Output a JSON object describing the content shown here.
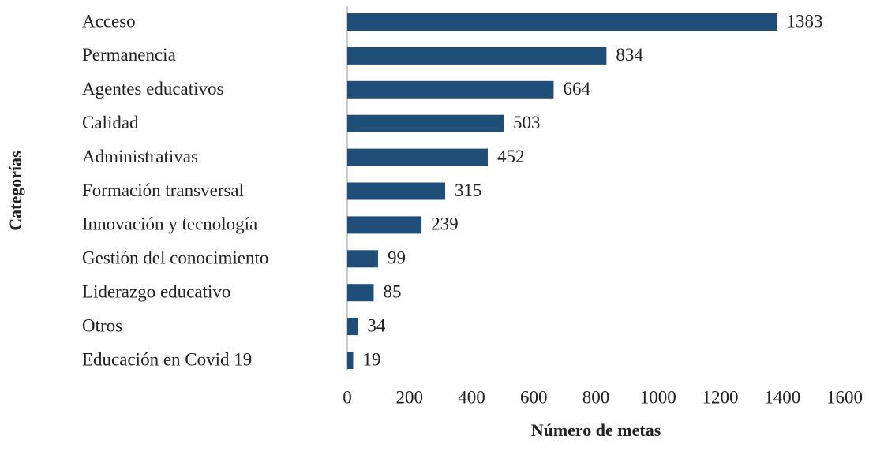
{
  "chart_data": {
    "type": "bar",
    "categories": [
      "Acceso",
      "Permanencia",
      "Agentes educativos",
      "Calidad",
      "Administrativas",
      "Formación transversal",
      "Innovación y tecnología",
      "Gestión del conocimiento",
      "Liderazgo educativo",
      "Otros",
      "Educación en Covid 19"
    ],
    "values": [
      1383,
      834,
      664,
      503,
      452,
      315,
      239,
      99,
      85,
      34,
      19
    ],
    "color": "#1f4e79",
    "xlim": [
      0,
      1600
    ],
    "xticks": [
      0,
      200,
      400,
      600,
      800,
      1000,
      1200,
      1400,
      1600
    ],
    "x_label": "Número de metas",
    "y_label": "Categorías"
  }
}
